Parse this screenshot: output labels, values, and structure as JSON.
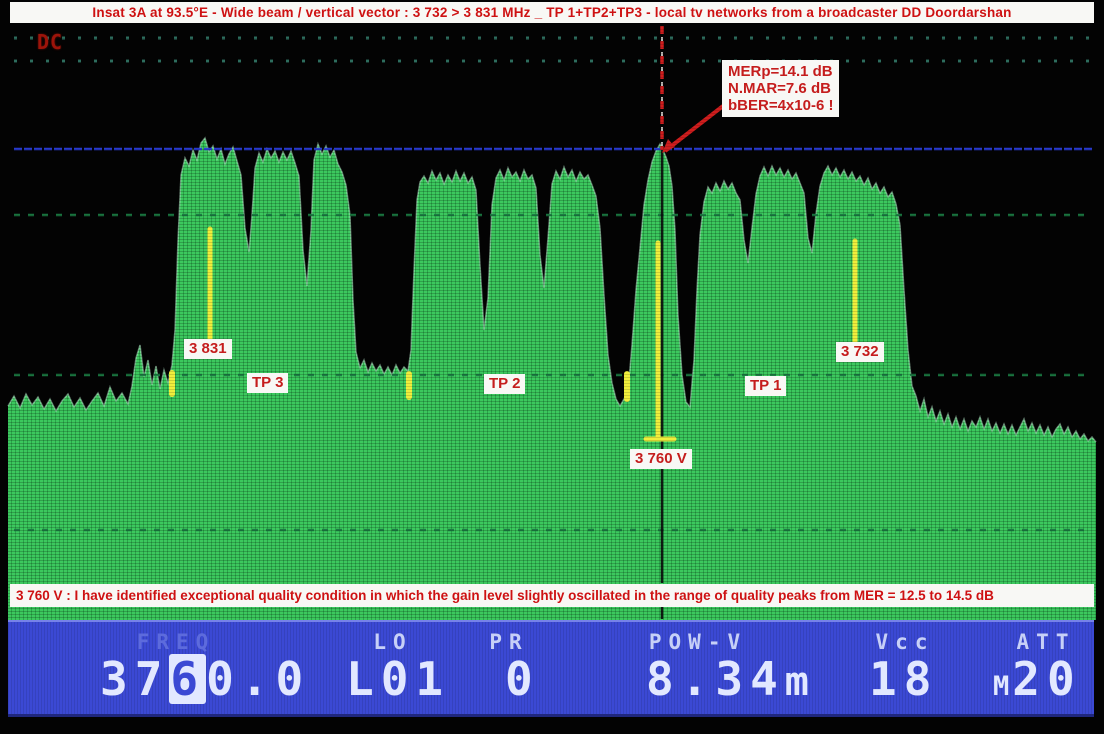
{
  "banner": {
    "text": "Insat 3A at 93.5°E - Wide beam / vertical vector : 3 732 > 3 831 MHz _ TP 1+TP2+TP3 - local tv networks from a broadcaster DD Doordarshan"
  },
  "display": {
    "dc_label": "DC",
    "mer_annotation": {
      "line1": "MERp=14.1 dB",
      "line2": "N.MAR=7.6 dB",
      "line3": "bBER=4x10-6 !"
    },
    "labels": {
      "freq_high": "3 831",
      "tp3": "TP 3",
      "tp2": "TP 2",
      "tp1": "TP 1",
      "freq_low": "3 732",
      "center_freq": "3 760 V"
    }
  },
  "caption": {
    "text": "3 760 V : I have identified exceptional quality condition in which the gain level slightly oscillated in the range of quality peaks from MER = 12.5 to 14.5 dB"
  },
  "status_bar": {
    "freq": {
      "label": "FREQ",
      "value": "3760.0",
      "value_prefix": "37",
      "value_cursor": "6",
      "value_suffix": "0.0"
    },
    "lo": {
      "label": "LO",
      "value": "L01"
    },
    "pr": {
      "label": "PR",
      "value": "0"
    },
    "pow_v": {
      "label": "POW-V",
      "value": "8.34",
      "unit": "m"
    },
    "vcc": {
      "label": "Vcc",
      "value": "18"
    },
    "att": {
      "label": "ATT",
      "value_prefix": "M",
      "value": "20"
    }
  },
  "colors": {
    "spectrum_green": "#3cc85e",
    "spectrum_stripe": "#2aa449",
    "banner_red": "#ce1112",
    "chip_red": "#c51d1d",
    "status_blue": "#3b49d4",
    "ref_line_blue": "#2b3dd8",
    "marker_yellow": "#f0ee3c",
    "marker_red": "#cf1d1d",
    "grid_teal": "#35806e",
    "grid_green_dark": "#1b7a42"
  },
  "chart_data": {
    "type": "area",
    "title": "Insat 3A vertical C-band spectrum, TP1+TP2+TP3 (3 732 > 3 831 MHz)",
    "x_axis": {
      "unit": "MHz",
      "left_marker": "3 831",
      "center_marker": "3 760 V",
      "right_marker": "3 732"
    },
    "measurements": {
      "MERp_dB": 14.1,
      "N_MAR_dB": 7.6,
      "bBER": "4x10-6"
    },
    "mer_range_note": "MER = 12.5 to 14.5 dB",
    "transponders": [
      {
        "name": "TP 3",
        "x_range": [
          175,
          352
        ]
      },
      {
        "name": "TP 2",
        "x_range": [
          412,
          622
        ]
      },
      {
        "name": "TP 1",
        "x_range": [
          695,
          908
        ]
      }
    ],
    "freq_markers": [
      {
        "label": "3 831",
        "x": 210
      },
      {
        "label": "3 760 V",
        "x": 660
      },
      {
        "label": "3 732",
        "x": 855
      }
    ],
    "gridlines": {
      "dotted_top_y": [
        38,
        61
      ],
      "dotted_mid_y": [
        215,
        375,
        530
      ],
      "ref_line_y": 149
    },
    "red_dashed_marker": {
      "x": 662,
      "y1": 26,
      "y2": 150
    },
    "black_marker": {
      "x": 662,
      "y1": 150,
      "y2": 583,
      "y3": 607,
      "y4": 619
    },
    "arrow": {
      "x1": 723,
      "y1": 106,
      "x2": 665,
      "y2": 151
    },
    "yellow_markers": [
      {
        "type": "v",
        "x": 210,
        "y1": 229,
        "y2": 339,
        "w": 5
      },
      {
        "type": "v",
        "x": 172,
        "y1": 373,
        "y2": 394,
        "w": 6
      },
      {
        "type": "v",
        "x": 409,
        "y1": 374,
        "y2": 397,
        "w": 6
      },
      {
        "type": "v",
        "x": 627,
        "y1": 374,
        "y2": 399,
        "w": 6
      },
      {
        "type": "v",
        "x": 658,
        "y1": 243,
        "y2": 437,
        "w": 5
      },
      {
        "type": "h",
        "y": 439,
        "x1": 646,
        "x2": 674,
        "w": 5
      },
      {
        "type": "v",
        "x": 855,
        "y1": 241,
        "y2": 342,
        "w": 5
      }
    ],
    "envelope_points": [
      [
        8,
        406
      ],
      [
        14,
        396
      ],
      [
        20,
        408
      ],
      [
        26,
        394
      ],
      [
        32,
        405
      ],
      [
        38,
        397
      ],
      [
        44,
        409
      ],
      [
        50,
        399
      ],
      [
        56,
        411
      ],
      [
        62,
        401
      ],
      [
        68,
        394
      ],
      [
        74,
        407
      ],
      [
        80,
        398
      ],
      [
        86,
        410
      ],
      [
        92,
        401
      ],
      [
        98,
        393
      ],
      [
        104,
        406
      ],
      [
        110,
        387
      ],
      [
        116,
        401
      ],
      [
        122,
        393
      ],
      [
        128,
        404
      ],
      [
        132,
        386
      ],
      [
        136,
        358
      ],
      [
        140,
        345
      ],
      [
        144,
        377
      ],
      [
        148,
        360
      ],
      [
        152,
        385
      ],
      [
        156,
        366
      ],
      [
        160,
        389
      ],
      [
        164,
        370
      ],
      [
        168,
        383
      ],
      [
        172,
        365
      ],
      [
        175,
        330
      ],
      [
        178,
        240
      ],
      [
        181,
        175
      ],
      [
        185,
        158
      ],
      [
        189,
        166
      ],
      [
        193,
        150
      ],
      [
        197,
        160
      ],
      [
        201,
        143
      ],
      [
        205,
        138
      ],
      [
        209,
        152
      ],
      [
        213,
        146
      ],
      [
        217,
        159
      ],
      [
        221,
        149
      ],
      [
        225,
        164
      ],
      [
        229,
        154
      ],
      [
        233,
        147
      ],
      [
        237,
        161
      ],
      [
        241,
        175
      ],
      [
        245,
        228
      ],
      [
        249,
        252
      ],
      [
        252,
        215
      ],
      [
        255,
        168
      ],
      [
        259,
        153
      ],
      [
        263,
        162
      ],
      [
        267,
        149
      ],
      [
        271,
        158
      ],
      [
        275,
        151
      ],
      [
        279,
        162
      ],
      [
        283,
        152
      ],
      [
        287,
        160
      ],
      [
        291,
        151
      ],
      [
        295,
        163
      ],
      [
        299,
        176
      ],
      [
        303,
        250
      ],
      [
        307,
        286
      ],
      [
        311,
        230
      ],
      [
        314,
        160
      ],
      [
        318,
        144
      ],
      [
        322,
        154
      ],
      [
        326,
        146
      ],
      [
        330,
        157
      ],
      [
        334,
        150
      ],
      [
        338,
        164
      ],
      [
        342,
        172
      ],
      [
        346,
        185
      ],
      [
        350,
        215
      ],
      [
        353,
        300
      ],
      [
        356,
        352
      ],
      [
        360,
        368
      ],
      [
        364,
        360
      ],
      [
        368,
        372
      ],
      [
        372,
        363
      ],
      [
        376,
        371
      ],
      [
        380,
        365
      ],
      [
        384,
        374
      ],
      [
        388,
        367
      ],
      [
        392,
        375
      ],
      [
        396,
        365
      ],
      [
        400,
        373
      ],
      [
        404,
        367
      ],
      [
        408,
        371
      ],
      [
        411,
        350
      ],
      [
        414,
        270
      ],
      [
        417,
        200
      ],
      [
        420,
        182
      ],
      [
        424,
        176
      ],
      [
        428,
        183
      ],
      [
        432,
        171
      ],
      [
        436,
        180
      ],
      [
        440,
        173
      ],
      [
        444,
        184
      ],
      [
        448,
        175
      ],
      [
        452,
        182
      ],
      [
        456,
        171
      ],
      [
        460,
        181
      ],
      [
        464,
        173
      ],
      [
        468,
        183
      ],
      [
        472,
        177
      ],
      [
        476,
        190
      ],
      [
        480,
        265
      ],
      [
        484,
        330
      ],
      [
        488,
        298
      ],
      [
        492,
        205
      ],
      [
        496,
        178
      ],
      [
        500,
        170
      ],
      [
        504,
        180
      ],
      [
        508,
        168
      ],
      [
        512,
        177
      ],
      [
        516,
        172
      ],
      [
        520,
        181
      ],
      [
        524,
        170
      ],
      [
        528,
        179
      ],
      [
        532,
        175
      ],
      [
        536,
        188
      ],
      [
        540,
        255
      ],
      [
        544,
        288
      ],
      [
        548,
        238
      ],
      [
        552,
        184
      ],
      [
        556,
        171
      ],
      [
        560,
        179
      ],
      [
        564,
        167
      ],
      [
        568,
        177
      ],
      [
        572,
        170
      ],
      [
        576,
        181
      ],
      [
        580,
        172
      ],
      [
        584,
        179
      ],
      [
        588,
        175
      ],
      [
        592,
        185
      ],
      [
        596,
        196
      ],
      [
        600,
        228
      ],
      [
        604,
        295
      ],
      [
        608,
        355
      ],
      [
        612,
        383
      ],
      [
        616,
        399
      ],
      [
        620,
        406
      ],
      [
        624,
        399
      ],
      [
        628,
        391
      ],
      [
        632,
        345
      ],
      [
        636,
        290
      ],
      [
        640,
        248
      ],
      [
        644,
        205
      ],
      [
        648,
        180
      ],
      [
        652,
        162
      ],
      [
        656,
        151
      ],
      [
        660,
        144
      ],
      [
        663,
        150
      ],
      [
        666,
        157
      ],
      [
        669,
        166
      ],
      [
        672,
        186
      ],
      [
        675,
        230
      ],
      [
        678,
        315
      ],
      [
        682,
        375
      ],
      [
        686,
        402
      ],
      [
        690,
        407
      ],
      [
        694,
        360
      ],
      [
        697,
        290
      ],
      [
        700,
        235
      ],
      [
        704,
        202
      ],
      [
        708,
        187
      ],
      [
        712,
        193
      ],
      [
        716,
        183
      ],
      [
        720,
        191
      ],
      [
        724,
        181
      ],
      [
        728,
        189
      ],
      [
        732,
        183
      ],
      [
        736,
        193
      ],
      [
        740,
        200
      ],
      [
        744,
        240
      ],
      [
        748,
        263
      ],
      [
        752,
        228
      ],
      [
        756,
        194
      ],
      [
        760,
        176
      ],
      [
        764,
        167
      ],
      [
        768,
        176
      ],
      [
        772,
        166
      ],
      [
        776,
        175
      ],
      [
        780,
        168
      ],
      [
        784,
        177
      ],
      [
        788,
        170
      ],
      [
        792,
        179
      ],
      [
        796,
        173
      ],
      [
        800,
        183
      ],
      [
        804,
        193
      ],
      [
        808,
        238
      ],
      [
        812,
        253
      ],
      [
        816,
        214
      ],
      [
        820,
        186
      ],
      [
        824,
        173
      ],
      [
        828,
        166
      ],
      [
        832,
        175
      ],
      [
        836,
        168
      ],
      [
        840,
        177
      ],
      [
        844,
        170
      ],
      [
        848,
        179
      ],
      [
        852,
        172
      ],
      [
        856,
        181
      ],
      [
        860,
        176
      ],
      [
        864,
        185
      ],
      [
        868,
        178
      ],
      [
        872,
        189
      ],
      [
        876,
        183
      ],
      [
        880,
        193
      ],
      [
        884,
        187
      ],
      [
        888,
        197
      ],
      [
        892,
        192
      ],
      [
        896,
        204
      ],
      [
        900,
        225
      ],
      [
        904,
        290
      ],
      [
        908,
        350
      ],
      [
        912,
        386
      ],
      [
        916,
        396
      ],
      [
        920,
        411
      ],
      [
        924,
        399
      ],
      [
        928,
        417
      ],
      [
        932,
        407
      ],
      [
        936,
        421
      ],
      [
        940,
        411
      ],
      [
        944,
        424
      ],
      [
        948,
        414
      ],
      [
        952,
        427
      ],
      [
        956,
        417
      ],
      [
        960,
        429
      ],
      [
        964,
        419
      ],
      [
        968,
        431
      ],
      [
        972,
        421
      ],
      [
        976,
        427
      ],
      [
        980,
        417
      ],
      [
        984,
        429
      ],
      [
        988,
        419
      ],
      [
        992,
        431
      ],
      [
        996,
        423
      ],
      [
        1000,
        433
      ],
      [
        1004,
        424
      ],
      [
        1008,
        434
      ],
      [
        1012,
        425
      ],
      [
        1016,
        435
      ],
      [
        1020,
        427
      ],
      [
        1024,
        419
      ],
      [
        1028,
        431
      ],
      [
        1032,
        423
      ],
      [
        1036,
        433
      ],
      [
        1040,
        425
      ],
      [
        1044,
        435
      ],
      [
        1048,
        427
      ],
      [
        1052,
        437
      ],
      [
        1056,
        429
      ],
      [
        1060,
        424
      ],
      [
        1064,
        434
      ],
      [
        1068,
        427
      ],
      [
        1072,
        437
      ],
      [
        1076,
        431
      ],
      [
        1080,
        439
      ],
      [
        1084,
        434
      ],
      [
        1088,
        441
      ],
      [
        1092,
        437
      ],
      [
        1096,
        442
      ]
    ]
  }
}
